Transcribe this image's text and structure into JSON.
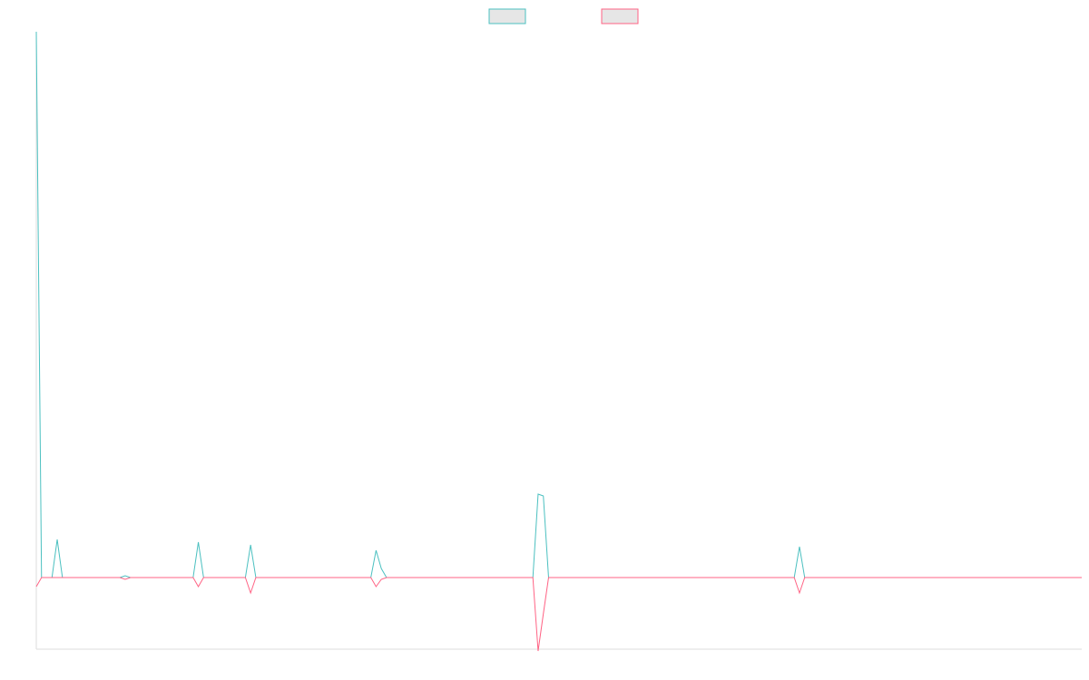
{
  "chart_data": {
    "type": "line",
    "x": [
      0,
      1,
      3,
      4,
      5,
      16,
      17,
      18,
      30,
      31,
      32,
      40,
      41,
      42,
      64,
      65,
      66,
      67,
      95,
      96,
      97,
      98,
      145,
      146,
      147,
      200
    ],
    "series": [
      {
        "color": "#4bc0c0",
        "values": [
          602,
          0,
          0,
          42,
          0,
          0,
          2,
          0,
          0,
          39,
          0,
          0,
          36,
          0,
          0,
          30,
          10,
          0,
          0,
          92,
          90,
          0,
          0,
          34,
          0,
          0
        ]
      },
      {
        "color": "#ff6384",
        "values": [
          -10,
          0,
          0,
          0,
          0,
          0,
          -2,
          0,
          0,
          -10,
          0,
          0,
          -17,
          0,
          0,
          -10,
          -2,
          0,
          0,
          -81,
          -40,
          0,
          0,
          -17,
          0,
          0
        ]
      }
    ],
    "xlim": [
      0,
      200
    ],
    "ylim": [
      -79,
      602
    ],
    "grid": false,
    "legend": "top"
  }
}
